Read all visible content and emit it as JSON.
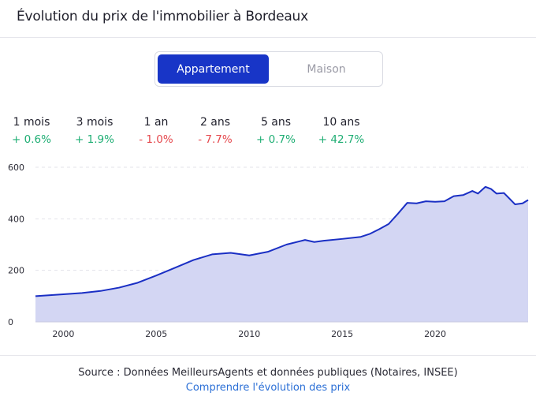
{
  "header": {
    "title": "Évolution du prix de l'immobilier à Bordeaux"
  },
  "toggle": {
    "options": [
      "Appartement",
      "Maison"
    ],
    "selected": "Appartement"
  },
  "stats": [
    {
      "period": "1 mois",
      "change": "+ 0.6%",
      "trend": "up"
    },
    {
      "period": "3 mois",
      "change": "+ 1.9%",
      "trend": "up"
    },
    {
      "period": "1 an",
      "change": "- 1.0%",
      "trend": "down"
    },
    {
      "period": "2 ans",
      "change": "- 7.7%",
      "trend": "down"
    },
    {
      "period": "5 ans",
      "change": "+ 0.7%",
      "trend": "up"
    },
    {
      "period": "10 ans",
      "change": "+ 42.7%",
      "trend": "up"
    }
  ],
  "colors": {
    "accent": "#1835c7",
    "line": "#1a2fc4",
    "area": "#d3d6f3",
    "positive": "#1fae74",
    "negative": "#e5484d",
    "link": "#2b6fd6"
  },
  "chart_data": {
    "type": "area",
    "x": [
      1998.5,
      2000,
      2001,
      2002,
      2003,
      2004,
      2005,
      2006,
      2007,
      2008,
      2009,
      2010,
      2011,
      2012,
      2013,
      2013.5,
      2014,
      2015,
      2016,
      2016.5,
      2017,
      2017.5,
      2018,
      2018.5,
      2019,
      2019.5,
      2020,
      2020.5,
      2021,
      2021.5,
      2022,
      2022.3,
      2022.7,
      2023,
      2023.3,
      2023.7,
      2024,
      2024.3,
      2024.7,
      2025
    ],
    "y": [
      100,
      107,
      112,
      120,
      133,
      152,
      180,
      210,
      240,
      262,
      268,
      258,
      272,
      300,
      318,
      310,
      315,
      322,
      330,
      342,
      360,
      380,
      420,
      462,
      460,
      468,
      466,
      468,
      488,
      492,
      508,
      498,
      524,
      516,
      498,
      500,
      478,
      456,
      460,
      473
    ],
    "xticks": [
      2000,
      2005,
      2010,
      2015,
      2020
    ],
    "yticks": [
      0,
      200,
      400,
      600
    ],
    "xlim": [
      1998.5,
      2025
    ],
    "ylim": [
      0,
      600
    ],
    "grid": true,
    "title": "",
    "xlabel": "",
    "ylabel": ""
  },
  "footer": {
    "source": "Source : Données MeilleursAgents et données publiques (Notaires, INSEE)",
    "link": "Comprendre l'évolution des prix"
  }
}
